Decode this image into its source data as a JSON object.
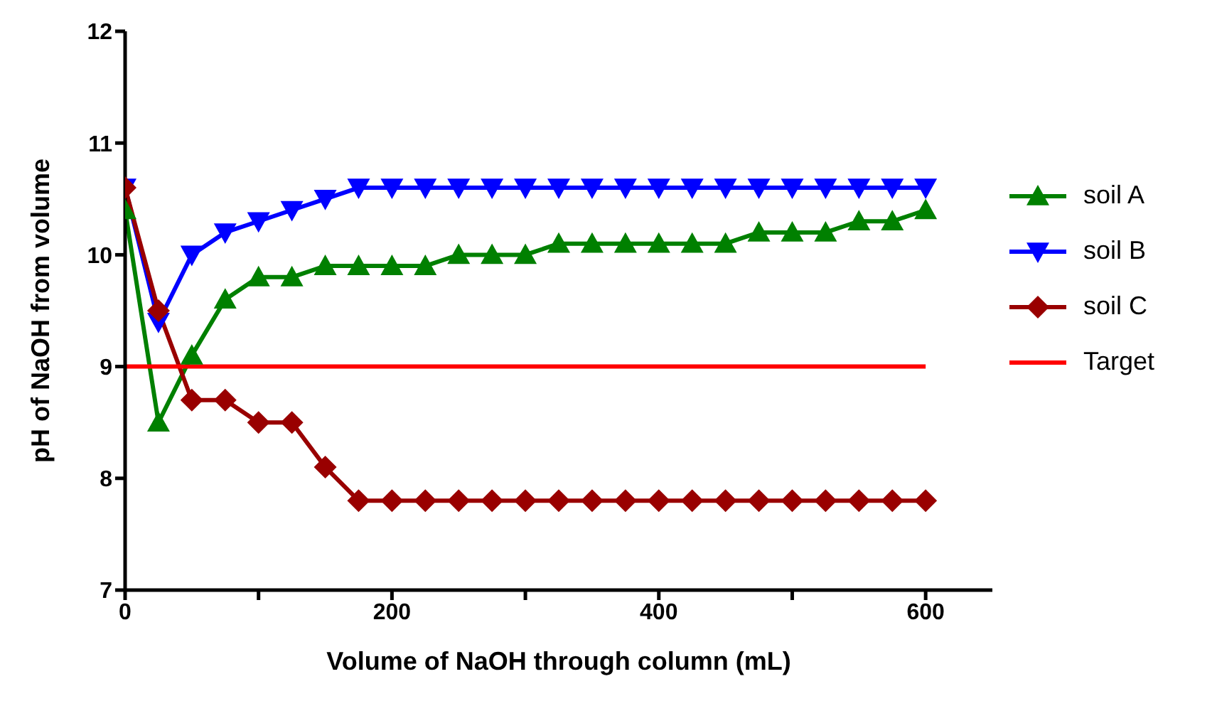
{
  "chart_data": {
    "type": "line",
    "xlabel": "Volume of NaOH through column (mL)",
    "ylabel": "pH of NaOH from volume",
    "x": [
      0,
      25,
      50,
      75,
      100,
      125,
      150,
      175,
      200,
      225,
      250,
      275,
      300,
      325,
      350,
      375,
      400,
      425,
      450,
      475,
      500,
      525,
      550,
      575,
      600
    ],
    "xlim": [
      0,
      650
    ],
    "xticks": [
      0,
      {
        "value": 100,
        "label": null
      },
      200,
      {
        "value": 300,
        "label": null
      },
      400,
      {
        "value": 500,
        "label": null
      },
      600
    ],
    "ylim": [
      7,
      12
    ],
    "yticks": [
      7,
      8,
      9,
      10,
      11,
      12
    ],
    "series": [
      {
        "name": "soil A",
        "color": "#008000",
        "marker": "triangle",
        "values": [
          10.4,
          8.5,
          9.1,
          9.6,
          9.8,
          9.8,
          9.9,
          9.9,
          9.9,
          9.9,
          10.0,
          10.0,
          10.0,
          10.1,
          10.1,
          10.1,
          10.1,
          10.1,
          10.1,
          10.2,
          10.2,
          10.2,
          10.3,
          10.3,
          10.4
        ]
      },
      {
        "name": "soil B",
        "color": "#0000ff",
        "marker": "triangle-down",
        "values": [
          10.6,
          9.4,
          10.0,
          10.2,
          10.3,
          10.4,
          10.5,
          10.6,
          10.6,
          10.6,
          10.6,
          10.6,
          10.6,
          10.6,
          10.6,
          10.6,
          10.6,
          10.6,
          10.6,
          10.6,
          10.6,
          10.6,
          10.6,
          10.6,
          10.6
        ]
      },
      {
        "name": "soil C",
        "color": "#990000",
        "marker": "diamond",
        "values": [
          10.6,
          9.5,
          8.7,
          8.7,
          8.5,
          8.5,
          8.1,
          7.8,
          7.8,
          7.8,
          7.8,
          7.8,
          7.8,
          7.8,
          7.8,
          7.8,
          7.8,
          7.8,
          7.8,
          7.8,
          7.8,
          7.8,
          7.8,
          7.8,
          7.8
        ]
      },
      {
        "name": "Target",
        "color": "#ff0000",
        "marker": "none",
        "x": [
          0,
          600
        ],
        "values": [
          9,
          9
        ]
      }
    ],
    "legend": "right",
    "line_style": "solid"
  }
}
